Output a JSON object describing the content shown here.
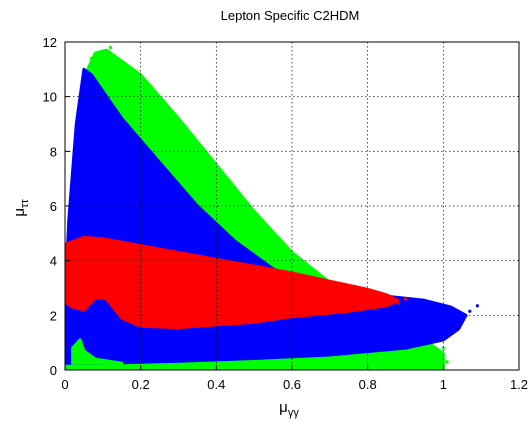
{
  "chart_data": {
    "type": "scatter",
    "title": "Lepton Specific C2HDM",
    "xlabel": {
      "base": "μ",
      "sub": "γγ"
    },
    "ylabel": {
      "base": "μ",
      "sub": "ττ"
    },
    "xlim": [
      0,
      1.2
    ],
    "ylim": [
      0,
      12
    ],
    "xticks": [
      "0",
      "0.2",
      "0.4",
      "0.6",
      "0.8",
      "1",
      "1.2"
    ],
    "yticks": [
      "0",
      "2",
      "4",
      "6",
      "8",
      "10",
      "12"
    ],
    "grid": true,
    "legend": "none",
    "series": [
      {
        "color": "#00ff00",
        "region": [
          [
            0.0,
            0.0
          ],
          [
            0.0,
            1.5
          ],
          [
            0.03,
            7.0
          ],
          [
            0.06,
            11.0
          ],
          [
            0.08,
            11.6
          ],
          [
            0.11,
            11.7
          ],
          [
            0.2,
            10.8
          ],
          [
            0.3,
            9.2
          ],
          [
            0.4,
            7.5
          ],
          [
            0.5,
            5.8
          ],
          [
            0.6,
            4.3
          ],
          [
            0.7,
            3.2
          ],
          [
            0.8,
            2.3
          ],
          [
            0.9,
            1.5
          ],
          [
            0.97,
            0.9
          ],
          [
            1.0,
            0.6
          ],
          [
            1.0,
            0.0
          ]
        ],
        "points": [
          [
            0.98,
            0.6
          ],
          [
            1.0,
            0.8
          ],
          [
            0.99,
            0.4
          ],
          [
            0.97,
            1.0
          ],
          [
            1.01,
            0.3
          ],
          [
            0.95,
            1.2
          ],
          [
            0.93,
            0.5
          ],
          [
            0.12,
            11.8
          ],
          [
            0.07,
            11.4
          ]
        ]
      },
      {
        "color": "#0000ff",
        "region": [
          [
            0.0,
            0.25
          ],
          [
            0.0,
            2.5
          ],
          [
            0.01,
            5.5
          ],
          [
            0.03,
            9.0
          ],
          [
            0.05,
            11.0
          ],
          [
            0.07,
            10.8
          ],
          [
            0.15,
            9.2
          ],
          [
            0.25,
            7.6
          ],
          [
            0.35,
            6.0
          ],
          [
            0.45,
            4.7
          ],
          [
            0.55,
            3.7
          ],
          [
            0.65,
            3.1
          ],
          [
            0.75,
            2.8
          ],
          [
            0.85,
            2.7
          ],
          [
            0.95,
            2.55
          ],
          [
            1.02,
            2.3
          ],
          [
            1.06,
            2.0
          ],
          [
            1.04,
            1.5
          ],
          [
            1.0,
            1.1
          ],
          [
            0.9,
            0.8
          ],
          [
            0.7,
            0.55
          ],
          [
            0.5,
            0.42
          ],
          [
            0.3,
            0.32
          ],
          [
            0.1,
            0.25
          ]
        ],
        "points": [
          [
            1.09,
            2.35
          ],
          [
            1.07,
            2.15
          ]
        ]
      },
      {
        "color": "#ff0000",
        "region": [
          [
            0.0,
            2.5
          ],
          [
            0.0,
            4.6
          ],
          [
            0.05,
            4.85
          ],
          [
            0.1,
            4.8
          ],
          [
            0.2,
            4.55
          ],
          [
            0.3,
            4.3
          ],
          [
            0.4,
            4.05
          ],
          [
            0.5,
            3.8
          ],
          [
            0.6,
            3.55
          ],
          [
            0.7,
            3.25
          ],
          [
            0.8,
            2.95
          ],
          [
            0.85,
            2.75
          ],
          [
            0.88,
            2.55
          ],
          [
            0.85,
            2.35
          ],
          [
            0.75,
            2.15
          ],
          [
            0.6,
            1.95
          ],
          [
            0.5,
            1.75
          ],
          [
            0.4,
            1.65
          ],
          [
            0.3,
            1.55
          ],
          [
            0.2,
            1.6
          ],
          [
            0.15,
            1.9
          ],
          [
            0.11,
            2.6
          ],
          [
            0.08,
            2.65
          ],
          [
            0.05,
            2.2
          ],
          [
            0.02,
            2.3
          ]
        ],
        "points": [
          [
            0.9,
            2.6
          ],
          [
            0.88,
            2.45
          ]
        ]
      }
    ],
    "inner_region": {
      "color": "#0000ff",
      "region": [
        [
          0.02,
          0.6
        ],
        [
          0.02,
          2.2
        ],
        [
          0.05,
          2.8
        ],
        [
          0.08,
          3.1
        ],
        [
          0.1,
          2.6
        ],
        [
          0.15,
          1.8
        ],
        [
          0.22,
          1.4
        ],
        [
          0.4,
          1.4
        ],
        [
          0.6,
          1.55
        ],
        [
          0.8,
          1.75
        ],
        [
          0.9,
          1.9
        ],
        [
          1.0,
          2.0
        ],
        [
          1.02,
          1.6
        ],
        [
          0.9,
          1.35
        ],
        [
          0.7,
          1.1
        ],
        [
          0.5,
          0.85
        ],
        [
          0.3,
          0.7
        ],
        [
          0.15,
          0.65
        ],
        [
          0.06,
          0.7
        ],
        [
          0.04,
          1.0
        ]
      ]
    },
    "green_inner": {
      "color": "#00ff00",
      "region": [
        [
          0.02,
          0.25
        ],
        [
          0.02,
          0.8
        ],
        [
          0.04,
          1.1
        ],
        [
          0.05,
          0.7
        ],
        [
          0.08,
          0.4
        ],
        [
          0.15,
          0.25
        ]
      ]
    }
  }
}
